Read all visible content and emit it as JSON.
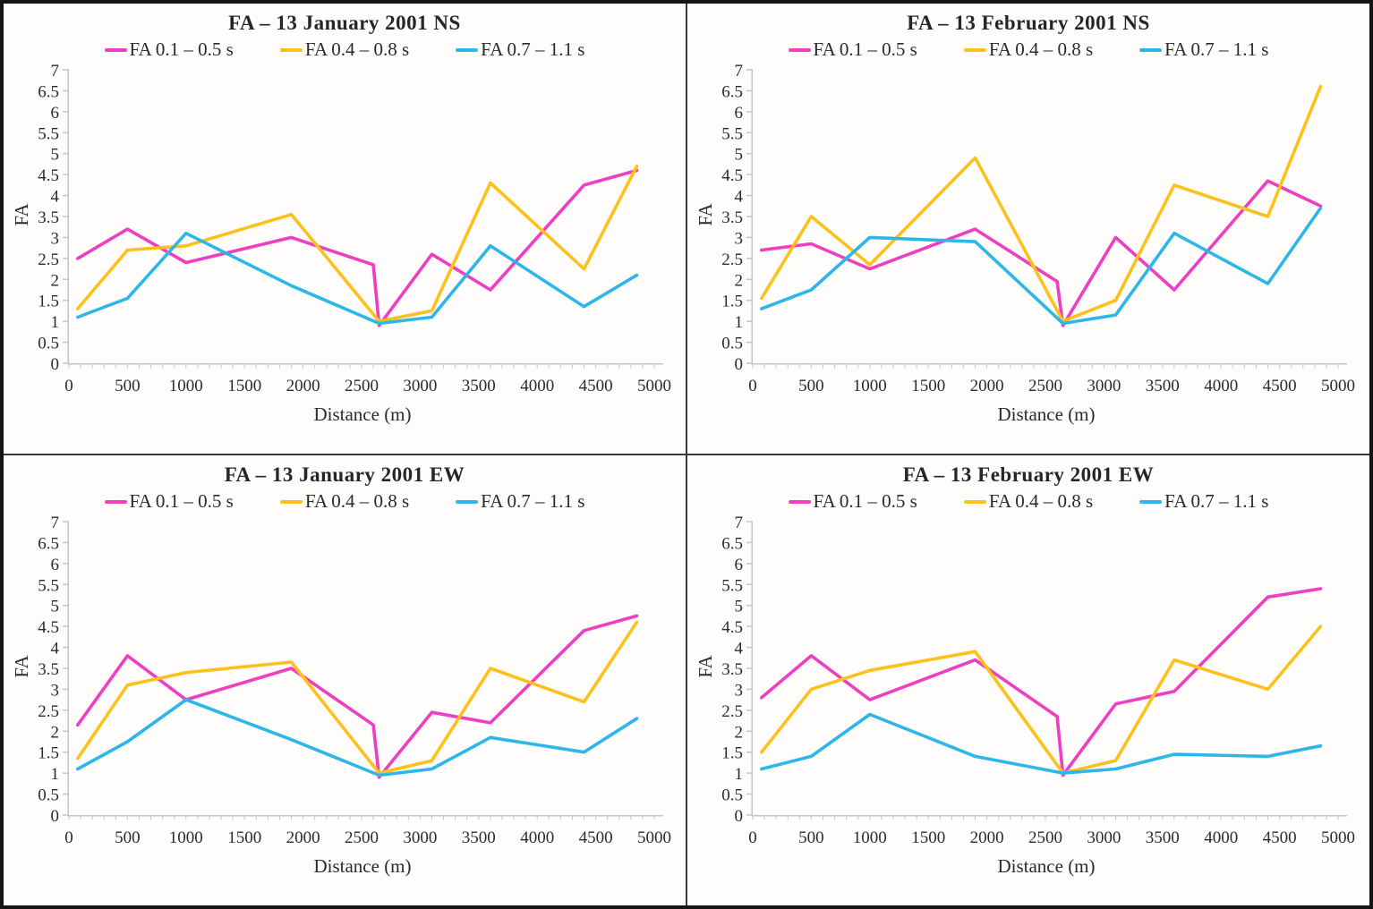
{
  "figure": {
    "y_label": "FA",
    "x_label": "Distance (m)",
    "colors": {
      "axis": "#c5c5c5",
      "text": "#2b2b2b",
      "background": "#fefdfc",
      "border": "#141414"
    }
  },
  "legend": {
    "items": [
      {
        "label": "FA 0.1 – 0.5 s",
        "color": "#EE3EC1"
      },
      {
        "label": "FA 0.4 – 0.8 s",
        "color": "#FCC21B"
      },
      {
        "label": "FA 0.7 – 1.1 s",
        "color": "#2DB7E9"
      }
    ]
  },
  "axes": {
    "x": {
      "min": 0,
      "max": 5000,
      "major_step": 500,
      "minor_step": 100
    },
    "y": {
      "min": 0,
      "max": 7,
      "step": 0.5
    }
  },
  "chart_data": [
    {
      "type": "line",
      "title": "FA – 13 January 2001 NS",
      "xlabel": "Distance (m)",
      "ylabel": "FA",
      "xlim": [
        0,
        5000
      ],
      "ylim": [
        0,
        7
      ],
      "legend_position": "top",
      "series": [
        {
          "name": "FA 0.1 – 0.5 s",
          "x": [
            75,
            500,
            1000,
            1900,
            2600,
            2650,
            3100,
            3600,
            4400,
            4850
          ],
          "y": [
            2.5,
            3.2,
            2.4,
            3.0,
            2.35,
            0.9,
            2.6,
            1.75,
            4.25,
            4.6
          ]
        },
        {
          "name": "FA 0.4 – 0.8 s",
          "x": [
            75,
            500,
            1000,
            1900,
            2650,
            3100,
            3600,
            4400,
            4850
          ],
          "y": [
            1.3,
            2.7,
            2.8,
            3.55,
            1.0,
            1.25,
            4.3,
            2.25,
            4.7
          ]
        },
        {
          "name": "FA 0.7 – 1.1 s",
          "x": [
            75,
            500,
            1000,
            1900,
            2650,
            3100,
            3600,
            4400,
            4850
          ],
          "y": [
            1.1,
            1.55,
            3.1,
            1.85,
            0.95,
            1.1,
            2.8,
            1.35,
            2.1
          ]
        }
      ]
    },
    {
      "type": "line",
      "title": "FA – 13 February 2001 NS",
      "xlabel": "Distance (m)",
      "ylabel": "FA",
      "xlim": [
        0,
        5000
      ],
      "ylim": [
        0,
        7
      ],
      "legend_position": "top",
      "series": [
        {
          "name": "FA 0.1 – 0.5 s",
          "x": [
            75,
            500,
            1000,
            1900,
            2600,
            2650,
            3100,
            3600,
            4400,
            4850
          ],
          "y": [
            2.7,
            2.85,
            2.25,
            3.2,
            1.95,
            0.9,
            3.0,
            1.75,
            4.35,
            3.75
          ]
        },
        {
          "name": "FA 0.4 – 0.8 s",
          "x": [
            75,
            500,
            1000,
            1900,
            2650,
            3100,
            3600,
            4400,
            4850
          ],
          "y": [
            1.55,
            3.5,
            2.35,
            4.9,
            1.0,
            1.5,
            4.25,
            3.5,
            6.6
          ]
        },
        {
          "name": "FA 0.7 – 1.1 s",
          "x": [
            75,
            500,
            1000,
            1900,
            2650,
            3100,
            3600,
            4400,
            4850
          ],
          "y": [
            1.3,
            1.75,
            3.0,
            2.9,
            0.95,
            1.15,
            3.1,
            1.9,
            3.7
          ]
        }
      ]
    },
    {
      "type": "line",
      "title": "FA – 13 January 2001 EW",
      "xlabel": "Distance (m)",
      "ylabel": "FA",
      "xlim": [
        0,
        5000
      ],
      "ylim": [
        0,
        7
      ],
      "legend_position": "top",
      "series": [
        {
          "name": "FA 0.1 – 0.5 s",
          "x": [
            75,
            500,
            1000,
            1900,
            2600,
            2650,
            3100,
            3600,
            4400,
            4850
          ],
          "y": [
            2.15,
            3.8,
            2.75,
            3.5,
            2.15,
            0.9,
            2.45,
            2.2,
            4.4,
            4.75
          ]
        },
        {
          "name": "FA 0.4 – 0.8 s",
          "x": [
            75,
            500,
            1000,
            1900,
            2650,
            3100,
            3600,
            4400,
            4850
          ],
          "y": [
            1.35,
            3.1,
            3.4,
            3.65,
            1.0,
            1.3,
            3.5,
            2.7,
            4.6
          ]
        },
        {
          "name": "FA 0.7 – 1.1 s",
          "x": [
            75,
            500,
            1000,
            1900,
            2650,
            3100,
            3600,
            4400,
            4850
          ],
          "y": [
            1.1,
            1.75,
            2.75,
            1.8,
            0.95,
            1.1,
            1.85,
            1.5,
            2.3
          ]
        }
      ]
    },
    {
      "type": "line",
      "title": "FA – 13 February 2001 EW",
      "xlabel": "Distance (m)",
      "ylabel": "FA",
      "xlim": [
        0,
        5000
      ],
      "ylim": [
        0,
        7
      ],
      "legend_position": "top",
      "series": [
        {
          "name": "FA 0.1 – 0.5 s",
          "x": [
            75,
            500,
            1000,
            1900,
            2600,
            2650,
            3100,
            3600,
            4400,
            4850
          ],
          "y": [
            2.8,
            3.8,
            2.75,
            3.7,
            2.35,
            0.95,
            2.65,
            2.95,
            5.2,
            5.4
          ]
        },
        {
          "name": "FA 0.4 – 0.8 s",
          "x": [
            75,
            500,
            1000,
            1900,
            2650,
            3100,
            3600,
            4400,
            4850
          ],
          "y": [
            1.5,
            3.0,
            3.45,
            3.9,
            1.0,
            1.3,
            3.7,
            3.0,
            4.5
          ]
        },
        {
          "name": "FA 0.7 – 1.1 s",
          "x": [
            75,
            500,
            1000,
            1900,
            2650,
            3100,
            3600,
            4400,
            4850
          ],
          "y": [
            1.1,
            1.4,
            2.4,
            1.4,
            1.0,
            1.1,
            1.45,
            1.4,
            1.65
          ]
        }
      ]
    }
  ]
}
